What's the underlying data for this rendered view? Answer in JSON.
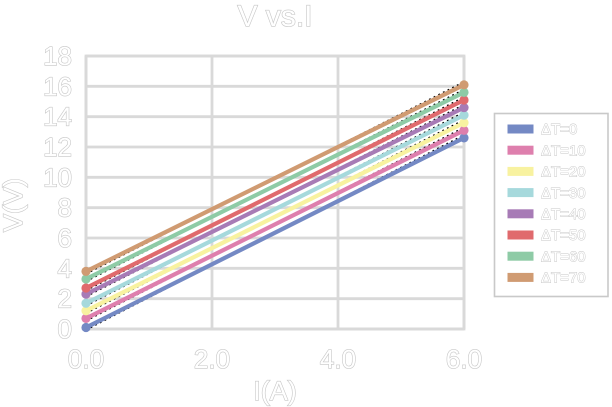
{
  "window": {
    "background": "#ffffff"
  },
  "chart_data": {
    "type": "line",
    "title": "V vs.I",
    "xlabel": "I(A)",
    "ylabel": "V(V)",
    "xlim": [
      0,
      6
    ],
    "ylim": [
      0,
      18
    ],
    "grid": true,
    "legend_position": "right-outside",
    "text_style": "hollow-outlined-light-gray",
    "marker": "circle",
    "trendline": {
      "style": "dotted",
      "color": "#000000",
      "note": "black dotted linear trendline behind each series"
    },
    "colors": {
      "grid": "#d9d9d9",
      "plot_border": "#d9d9d9",
      "text_fill": "#ffffff",
      "text_outline": "#c6c6c6",
      "legend_border": "#c9c9c9",
      "legend_fill": "#ffffff",
      "trendline": "#000000"
    },
    "x_ticks": [
      {
        "value": 0,
        "label": "0.0"
      },
      {
        "value": 2,
        "label": "2.0"
      },
      {
        "value": 4,
        "label": "4.0"
      },
      {
        "value": 6,
        "label": "6.0"
      }
    ],
    "y_ticks": [
      {
        "value": 0,
        "label": "0"
      },
      {
        "value": 2,
        "label": "2"
      },
      {
        "value": 4,
        "label": "4"
      },
      {
        "value": 6,
        "label": "6"
      },
      {
        "value": 8,
        "label": "8"
      },
      {
        "value": 10,
        "label": "10"
      },
      {
        "value": 12,
        "label": "12"
      },
      {
        "value": 14,
        "label": "14"
      },
      {
        "value": 16,
        "label": "16"
      },
      {
        "value": 18,
        "label": "18"
      }
    ],
    "x": [
      0,
      6
    ],
    "series": [
      {
        "name": "ΔT=0",
        "color": "#7489c4",
        "values": [
          0.1,
          12.6
        ]
      },
      {
        "name": "ΔT=10",
        "color": "#de7fad",
        "values": [
          0.7,
          13.1
        ]
      },
      {
        "name": "ΔT=20",
        "color": "#f8f2a0",
        "values": [
          1.2,
          13.6
        ]
      },
      {
        "name": "ΔT=30",
        "color": "#a6d9dc",
        "values": [
          1.7,
          14.1
        ]
      },
      {
        "name": "ΔT=40",
        "color": "#a77bb6",
        "values": [
          2.3,
          14.6
        ]
      },
      {
        "name": "ΔT=50",
        "color": "#e06a6d",
        "values": [
          2.7,
          15.1
        ]
      },
      {
        "name": "ΔT=60",
        "color": "#8ecba6",
        "values": [
          3.3,
          15.6
        ]
      },
      {
        "name": "ΔT=70",
        "color": "#d09b72",
        "values": [
          3.8,
          16.1
        ]
      }
    ]
  }
}
